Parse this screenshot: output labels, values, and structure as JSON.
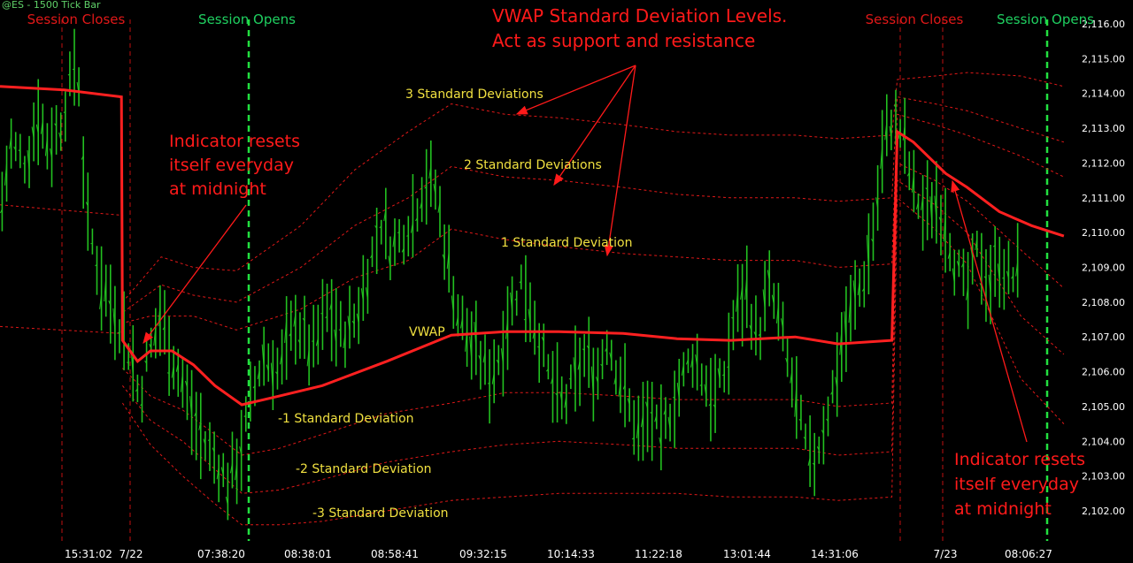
{
  "chart_data": {
    "type": "line",
    "title": "@ES - 1500 Tick Bar",
    "y_axis": {
      "ticks": [
        "2,116.00",
        "2,115.00",
        "2,114.00",
        "2,113.00",
        "2,112.00",
        "2,111.00",
        "2,110.00",
        "2,109.00",
        "2,108.00",
        "2,107.00",
        "2,106.00",
        "2,105.00",
        "2,104.00",
        "2,103.00",
        "2,102.00"
      ],
      "ylim": [
        2101.5,
        2116.2
      ],
      "position": "right"
    },
    "x_axis": {
      "ticks": [
        "15:31:02",
        "7/22",
        "07:38:20",
        "08:38:01",
        "08:58:41",
        "09:32:15",
        "10:14:33",
        "11:22:18",
        "13:01:44",
        "14:31:06",
        "7/23",
        "08:06:27"
      ]
    },
    "session_markers": [
      {
        "label": "Session Closes",
        "kind": "close",
        "bar": 0.018
      },
      {
        "label": "Session Opens",
        "kind": "open",
        "bar": 0.22
      },
      {
        "label": "Session Closes",
        "kind": "close",
        "bar": 0.79
      },
      {
        "label": "Session Opens",
        "kind": "open",
        "bar": 0.925
      }
    ],
    "annotations": {
      "headline_line1": "VWAP Standard Deviation Levels.",
      "headline_line2": "Act as support and resistance",
      "reset_left": [
        "Indicator resets",
        "itself everyday",
        "at midnight"
      ],
      "reset_right": [
        "Indicator resets",
        "itself everyday",
        "at midnight"
      ],
      "sd3_upper": "3 Standard Deviations",
      "sd2_upper": "2 Standard Deviations",
      "sd1_upper": "1 Standard Deviation",
      "vwap": "VWAP",
      "sd1_lower": "-1 Standard Deviation",
      "sd2_lower": "-2 Standard Deviation",
      "sd3_lower": "-3 Standard Deviation"
    },
    "series": [
      {
        "role": "vwap",
        "color": "#ff2020",
        "points": [
          [
            0,
            2114.2
          ],
          [
            0.06,
            2114.1
          ],
          [
            0.113,
            2113.9
          ],
          [
            0.114,
            2106.9
          ],
          [
            0.128,
            2106.3
          ],
          [
            0.14,
            2106.6
          ],
          [
            0.16,
            2106.6
          ],
          [
            0.18,
            2106.2
          ],
          [
            0.2,
            2105.6
          ],
          [
            0.225,
            2105.05
          ],
          [
            0.26,
            2105.3
          ],
          [
            0.3,
            2105.6
          ],
          [
            0.36,
            2106.3
          ],
          [
            0.42,
            2107.05
          ],
          [
            0.47,
            2107.15
          ],
          [
            0.52,
            2107.15
          ],
          [
            0.58,
            2107.1
          ],
          [
            0.63,
            2106.95
          ],
          [
            0.68,
            2106.9
          ],
          [
            0.74,
            2107.0
          ],
          [
            0.78,
            2106.8
          ],
          [
            0.83,
            2106.9
          ],
          [
            0.835,
            2112.9
          ],
          [
            0.85,
            2112.6
          ],
          [
            0.88,
            2111.7
          ],
          [
            0.9,
            2111.3
          ],
          [
            0.93,
            2110.6
          ],
          [
            0.96,
            2110.2
          ],
          [
            0.99,
            2109.9
          ]
        ]
      },
      {
        "role": "sd1_upper",
        "color": "#e01818",
        "points": [
          [
            0,
            2110.8
          ],
          [
            0.113,
            2110.5
          ],
          [
            0.114,
            2107.4
          ],
          [
            0.14,
            2107.6
          ],
          [
            0.18,
            2107.6
          ],
          [
            0.22,
            2107.2
          ],
          [
            0.28,
            2107.8
          ],
          [
            0.33,
            2108.7
          ],
          [
            0.38,
            2109.2
          ],
          [
            0.42,
            2110.1
          ],
          [
            0.47,
            2109.8
          ],
          [
            0.52,
            2109.6
          ],
          [
            0.58,
            2109.4
          ],
          [
            0.63,
            2109.3
          ],
          [
            0.68,
            2109.2
          ],
          [
            0.74,
            2109.2
          ],
          [
            0.78,
            2109.0
          ],
          [
            0.83,
            2109.1
          ],
          [
            0.835,
            2113.4
          ],
          [
            0.87,
            2113.1
          ],
          [
            0.9,
            2112.8
          ],
          [
            0.95,
            2112.2
          ],
          [
            0.99,
            2111.6
          ]
        ]
      },
      {
        "role": "sd2_upper",
        "color": "#e01818",
        "points": [
          [
            0,
            2107.3
          ],
          [
            0.113,
            2107.1
          ],
          [
            0.114,
            2107.7
          ],
          [
            0.15,
            2108.5
          ],
          [
            0.18,
            2108.2
          ],
          [
            0.22,
            2108.0
          ],
          [
            0.28,
            2109.0
          ],
          [
            0.33,
            2110.2
          ],
          [
            0.38,
            2111.0
          ],
          [
            0.42,
            2111.9
          ],
          [
            0.47,
            2111.6
          ],
          [
            0.52,
            2111.5
          ],
          [
            0.58,
            2111.3
          ],
          [
            0.63,
            2111.1
          ],
          [
            0.68,
            2111.0
          ],
          [
            0.74,
            2111.0
          ],
          [
            0.78,
            2110.9
          ],
          [
            0.83,
            2111.0
          ],
          [
            0.835,
            2113.9
          ],
          [
            0.87,
            2113.7
          ],
          [
            0.9,
            2113.5
          ],
          [
            0.95,
            2113.0
          ],
          [
            0.99,
            2112.6
          ]
        ]
      },
      {
        "role": "sd3_upper",
        "color": "#e01818",
        "points": [
          [
            0.114,
            2108.0
          ],
          [
            0.15,
            2109.3
          ],
          [
            0.18,
            2109.0
          ],
          [
            0.22,
            2108.9
          ],
          [
            0.28,
            2110.2
          ],
          [
            0.33,
            2111.8
          ],
          [
            0.38,
            2112.9
          ],
          [
            0.42,
            2113.7
          ],
          [
            0.47,
            2113.4
          ],
          [
            0.52,
            2113.3
          ],
          [
            0.58,
            2113.1
          ],
          [
            0.63,
            2112.9
          ],
          [
            0.68,
            2112.8
          ],
          [
            0.74,
            2112.8
          ],
          [
            0.78,
            2112.7
          ],
          [
            0.83,
            2112.8
          ],
          [
            0.835,
            2114.4
          ],
          [
            0.87,
            2114.5
          ],
          [
            0.9,
            2114.6
          ],
          [
            0.95,
            2114.5
          ],
          [
            0.99,
            2114.2
          ]
        ]
      },
      {
        "role": "sd1_lower",
        "color": "#e01818",
        "points": [
          [
            0.114,
            2106.1
          ],
          [
            0.14,
            2105.3
          ],
          [
            0.17,
            2104.9
          ],
          [
            0.2,
            2104.2
          ],
          [
            0.225,
            2103.6
          ],
          [
            0.26,
            2103.8
          ],
          [
            0.3,
            2104.2
          ],
          [
            0.36,
            2104.8
          ],
          [
            0.42,
            2105.1
          ],
          [
            0.47,
            2105.4
          ],
          [
            0.52,
            2105.4
          ],
          [
            0.58,
            2105.3
          ],
          [
            0.63,
            2105.2
          ],
          [
            0.68,
            2105.2
          ],
          [
            0.74,
            2105.2
          ],
          [
            0.78,
            2105.0
          ],
          [
            0.83,
            2105.1
          ],
          [
            0.835,
            2112.0
          ],
          [
            0.87,
            2111.5
          ],
          [
            0.9,
            2110.9
          ],
          [
            0.95,
            2109.5
          ],
          [
            0.99,
            2108.4
          ]
        ]
      },
      {
        "role": "sd2_lower",
        "color": "#e01818",
        "points": [
          [
            0.114,
            2105.6
          ],
          [
            0.14,
            2104.6
          ],
          [
            0.17,
            2104.0
          ],
          [
            0.2,
            2103.2
          ],
          [
            0.225,
            2102.5
          ],
          [
            0.26,
            2102.6
          ],
          [
            0.3,
            2102.9
          ],
          [
            0.36,
            2103.4
          ],
          [
            0.42,
            2103.7
          ],
          [
            0.47,
            2103.9
          ],
          [
            0.52,
            2104.0
          ],
          [
            0.58,
            2103.9
          ],
          [
            0.63,
            2103.8
          ],
          [
            0.68,
            2103.8
          ],
          [
            0.74,
            2103.8
          ],
          [
            0.78,
            2103.6
          ],
          [
            0.83,
            2103.7
          ],
          [
            0.835,
            2111.5
          ],
          [
            0.87,
            2110.8
          ],
          [
            0.9,
            2110.0
          ],
          [
            0.95,
            2107.6
          ],
          [
            0.99,
            2106.5
          ]
        ]
      },
      {
        "role": "sd3_lower",
        "color": "#e01818",
        "points": [
          [
            0.114,
            2105.1
          ],
          [
            0.14,
            2103.9
          ],
          [
            0.17,
            2103.0
          ],
          [
            0.2,
            2102.2
          ],
          [
            0.225,
            2101.6
          ],
          [
            0.26,
            2101.6
          ],
          [
            0.3,
            2101.7
          ],
          [
            0.36,
            2102.0
          ],
          [
            0.42,
            2102.3
          ],
          [
            0.47,
            2102.4
          ],
          [
            0.52,
            2102.5
          ],
          [
            0.58,
            2102.5
          ],
          [
            0.63,
            2102.5
          ],
          [
            0.68,
            2102.4
          ],
          [
            0.74,
            2102.4
          ],
          [
            0.78,
            2102.3
          ],
          [
            0.83,
            2102.4
          ],
          [
            0.835,
            2111.0
          ],
          [
            0.87,
            2110.1
          ],
          [
            0.9,
            2109.1
          ],
          [
            0.95,
            2105.8
          ],
          [
            0.99,
            2104.5
          ]
        ]
      },
      {
        "role": "price",
        "color": "#22c020",
        "points": [
          [
            0,
            2110.5
          ],
          [
            0.01,
            2112.5
          ],
          [
            0.025,
            2112.0
          ],
          [
            0.035,
            2113.5
          ],
          [
            0.045,
            2112.5
          ],
          [
            0.055,
            2113.0
          ],
          [
            0.065,
            2114.2
          ],
          [
            0.072,
            2115.2
          ],
          [
            0.08,
            2110.5
          ],
          [
            0.095,
            2108.5
          ],
          [
            0.11,
            2107.5
          ],
          [
            0.122,
            2106.5
          ],
          [
            0.13,
            2105.2
          ],
          [
            0.138,
            2106.5
          ],
          [
            0.15,
            2107.6
          ],
          [
            0.16,
            2106.5
          ],
          [
            0.172,
            2105.5
          ],
          [
            0.185,
            2104.2
          ],
          [
            0.2,
            2103.5
          ],
          [
            0.212,
            2102.8
          ],
          [
            0.222,
            2103.5
          ],
          [
            0.232,
            2105.0
          ],
          [
            0.245,
            2106.5
          ],
          [
            0.26,
            2106.0
          ],
          [
            0.275,
            2107.5
          ],
          [
            0.29,
            2106.5
          ],
          [
            0.305,
            2107.8
          ],
          [
            0.318,
            2107.0
          ],
          [
            0.332,
            2107.6
          ],
          [
            0.345,
            2109.2
          ],
          [
            0.355,
            2110.3
          ],
          [
            0.365,
            2109.5
          ],
          [
            0.375,
            2110.0
          ],
          [
            0.385,
            2110.5
          ],
          [
            0.395,
            2111.5
          ],
          [
            0.405,
            2111.3
          ],
          [
            0.415,
            2109.5
          ],
          [
            0.425,
            2107.8
          ],
          [
            0.435,
            2107.0
          ],
          [
            0.445,
            2106.5
          ],
          [
            0.455,
            2105.8
          ],
          [
            0.465,
            2106.5
          ],
          [
            0.475,
            2107.8
          ],
          [
            0.485,
            2108.6
          ],
          [
            0.495,
            2107.8
          ],
          [
            0.505,
            2106.5
          ],
          [
            0.515,
            2105.5
          ],
          [
            0.525,
            2105.0
          ],
          [
            0.535,
            2105.8
          ],
          [
            0.545,
            2106.5
          ],
          [
            0.555,
            2105.8
          ],
          [
            0.565,
            2107.0
          ],
          [
            0.575,
            2106.0
          ],
          [
            0.585,
            2105.0
          ],
          [
            0.595,
            2104.2
          ],
          [
            0.605,
            2104.8
          ],
          [
            0.615,
            2104.0
          ],
          [
            0.625,
            2105.0
          ],
          [
            0.635,
            2105.8
          ],
          [
            0.645,
            2106.5
          ],
          [
            0.655,
            2105.8
          ],
          [
            0.665,
            2105.2
          ],
          [
            0.675,
            2106.0
          ],
          [
            0.685,
            2107.8
          ],
          [
            0.695,
            2108.3
          ],
          [
            0.705,
            2106.8
          ],
          [
            0.715,
            2108.5
          ],
          [
            0.725,
            2107.5
          ],
          [
            0.735,
            2106.0
          ],
          [
            0.745,
            2104.5
          ],
          [
            0.755,
            2103.2
          ],
          [
            0.765,
            2104.2
          ],
          [
            0.775,
            2105.5
          ],
          [
            0.785,
            2107.0
          ],
          [
            0.795,
            2108.0
          ],
          [
            0.805,
            2108.8
          ],
          [
            0.815,
            2110.5
          ],
          [
            0.822,
            2112.5
          ],
          [
            0.83,
            2113.3
          ],
          [
            0.84,
            2112.8
          ],
          [
            0.85,
            2111.2
          ],
          [
            0.86,
            2110.5
          ],
          [
            0.87,
            2111.0
          ],
          [
            0.88,
            2110.3
          ],
          [
            0.89,
            2109.0
          ],
          [
            0.9,
            2108.2
          ],
          [
            0.91,
            2109.5
          ],
          [
            0.92,
            2108.5
          ],
          [
            0.93,
            2109.2
          ],
          [
            0.94,
            2108.6
          ],
          [
            0.95,
            2109.0
          ]
        ]
      }
    ]
  }
}
